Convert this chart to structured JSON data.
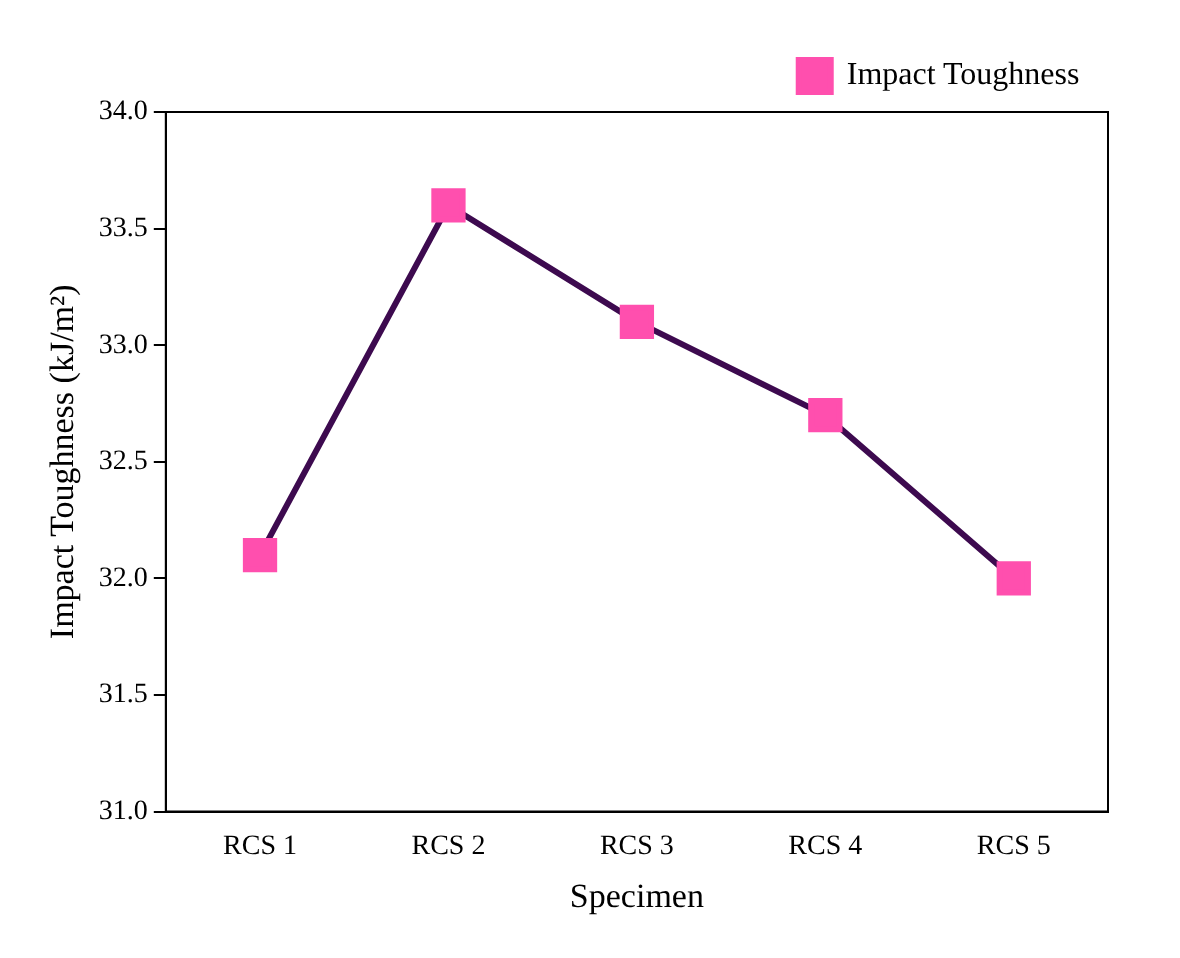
{
  "chart_data": {
    "type": "line",
    "xlabel": "Specimen",
    "ylabel": "Impact Toughness (kJ/m²)",
    "categories": [
      "RCS 1",
      "RCS 2",
      "RCS 3",
      "RCS 4",
      "RCS 5"
    ],
    "series": [
      {
        "name": "Impact Toughness",
        "color": "#3d0a4f",
        "colors": [
          "#ff4fae",
          "#ff4fae",
          "#ff4fae",
          "#ff4fae",
          "#ff4fae"
        ],
        "values": [
          32.1,
          33.6,
          33.1,
          32.7,
          32.0
        ]
      }
    ],
    "ylim": [
      31,
      34
    ],
    "yticks": [
      {
        "value": 31,
        "label": "31.0"
      },
      {
        "value": 31.5,
        "label": "31.5"
      },
      {
        "value": 32,
        "label": "32.0"
      },
      {
        "value": 32.5,
        "label": "32.5"
      },
      {
        "value": 33,
        "label": "33.0"
      },
      {
        "value": 33.5,
        "label": "33.5"
      },
      {
        "value": 34,
        "label": "34.0"
      }
    ],
    "grid": false,
    "legend": "top right",
    "marker": "square",
    "line_style": "solid"
  }
}
